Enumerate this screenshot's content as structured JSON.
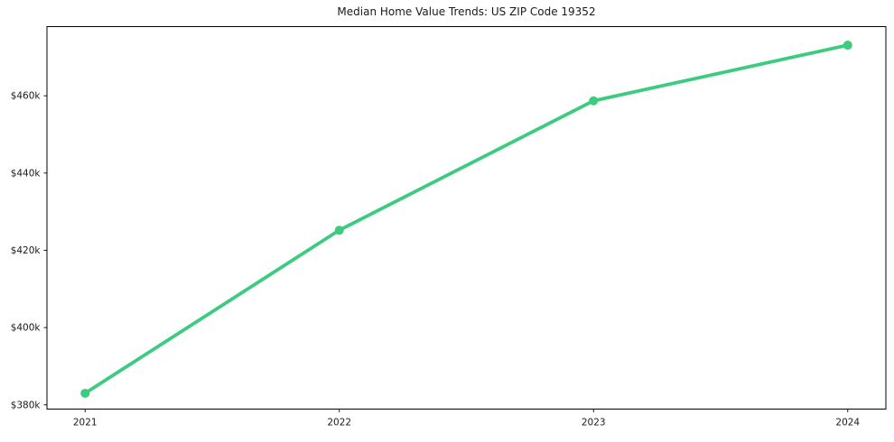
{
  "figure": {
    "background_color": "#ffffff",
    "text_color": "#1a1a1a",
    "spine_color": "#000000"
  },
  "chart_data": {
    "type": "line",
    "title": "Median Home Value Trends: US ZIP Code 19352",
    "xlabel": "",
    "ylabel": "",
    "grid": false,
    "legend": "none",
    "x": [
      2021,
      2022,
      2023,
      2024
    ],
    "x_tick_labels": [
      "2021",
      "2022",
      "2023",
      "2024"
    ],
    "y_ticks": [
      {
        "value": 380000,
        "label": "$380k"
      },
      {
        "value": 400000,
        "label": "$400k"
      },
      {
        "value": 420000,
        "label": "$420k"
      },
      {
        "value": 440000,
        "label": "$440k"
      },
      {
        "value": 460000,
        "label": "$460k"
      }
    ],
    "series": [
      {
        "values": [
          383000,
          425200,
          458700,
          473100
        ],
        "color": "#3dcb80",
        "marker": "circle"
      }
    ],
    "xlim": [
      2020.85,
      2024.15
    ],
    "ylim": [
      378900,
      477900
    ]
  }
}
